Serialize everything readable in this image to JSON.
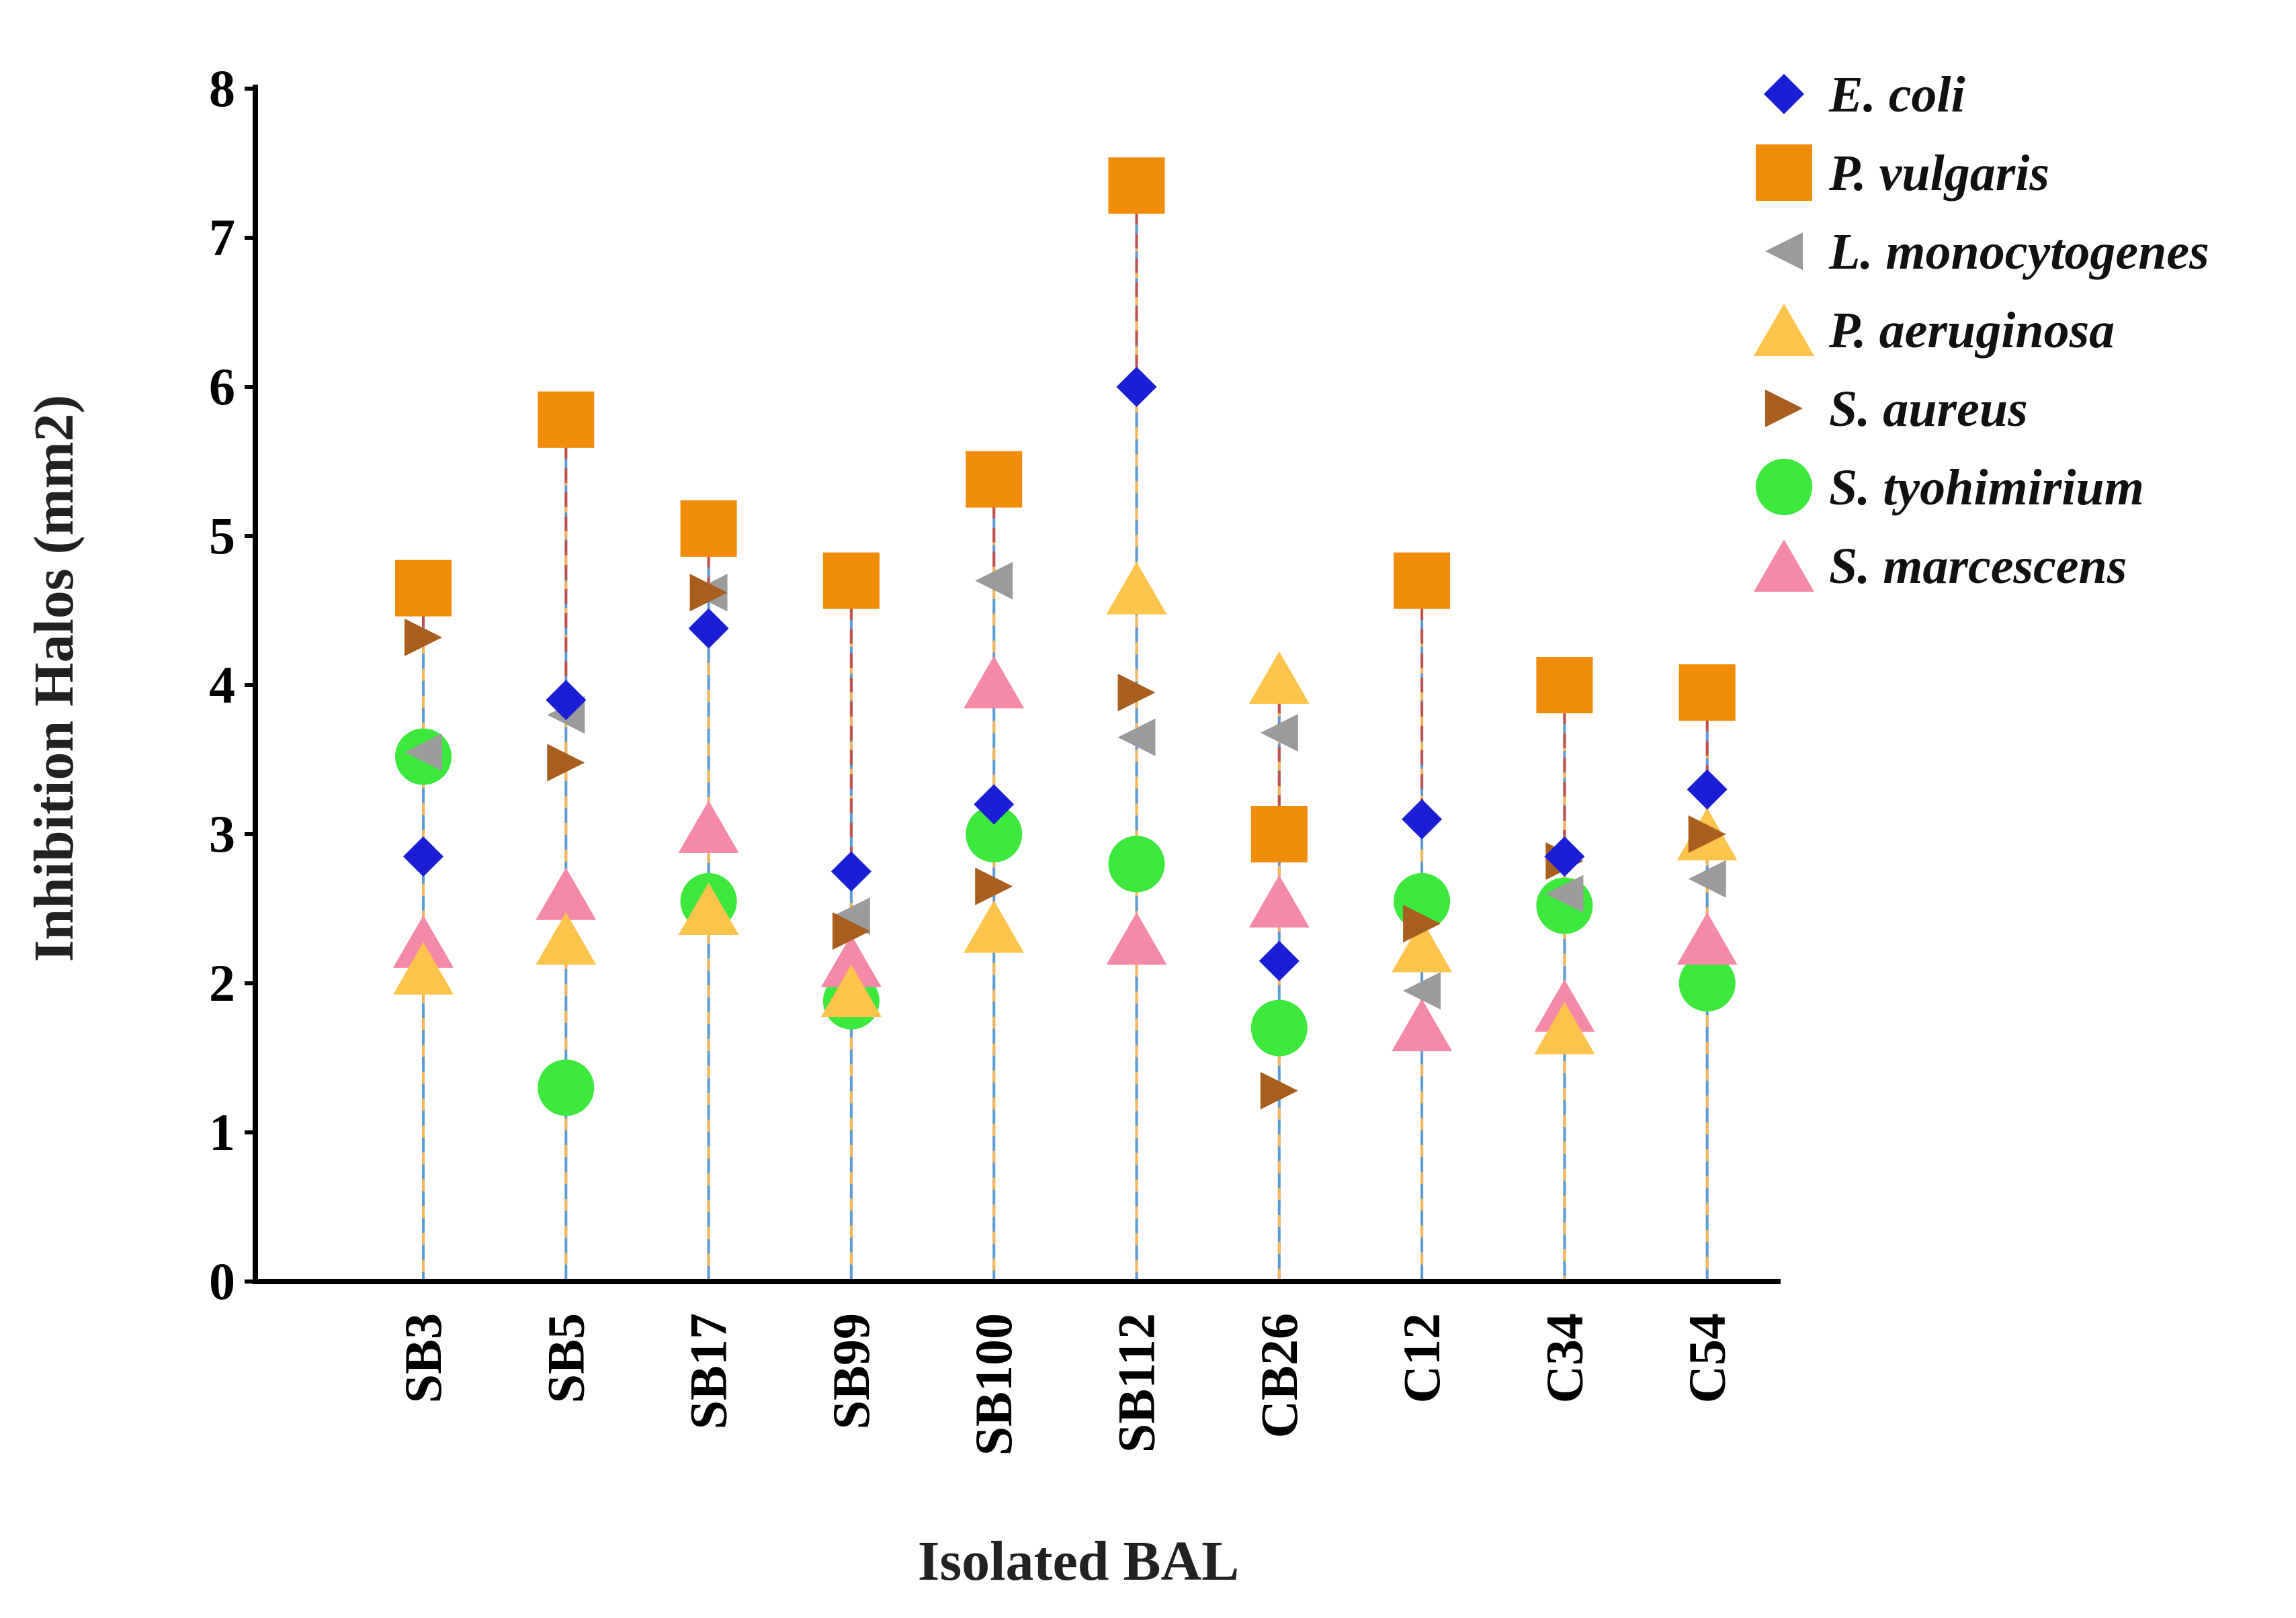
{
  "chart_data": {
    "type": "scatter",
    "title": "",
    "xlabel": "Isolated BAL",
    "ylabel": "Inhibition Halos (mm2)",
    "ylim": [
      0,
      8
    ],
    "yticks": [
      "0",
      "1",
      "2",
      "3",
      "4",
      "5",
      "6",
      "7",
      "8"
    ],
    "categories": [
      "SB3",
      "SB5",
      "SB17",
      "SB99",
      "SB100",
      "SB112",
      "CB26",
      "C12",
      "C34",
      "C54"
    ],
    "legend_position": "top-right",
    "series": [
      {
        "name": "E. coli",
        "marker": "diamond",
        "color": "#1a1fd6",
        "values": [
          2.85,
          3.9,
          4.38,
          2.75,
          3.2,
          6.0,
          2.15,
          3.1,
          2.85,
          3.3
        ]
      },
      {
        "name": "P. vulgaris",
        "marker": "square",
        "color": "#f08c0a",
        "values": [
          4.65,
          5.78,
          5.05,
          4.7,
          5.38,
          7.35,
          3.0,
          4.7,
          4.0,
          3.95
        ]
      },
      {
        "name": "L. monocytogenes",
        "marker": "triangle-left",
        "color": "#9b9b9b",
        "values": [
          3.55,
          3.8,
          4.62,
          2.45,
          4.7,
          3.65,
          3.68,
          1.95,
          2.6,
          2.7
        ]
      },
      {
        "name": "P. aeruginosa",
        "marker": "triangle-up",
        "color": "#fcc44a",
        "values": [
          2.1,
          2.3,
          2.5,
          1.95,
          2.38,
          4.65,
          4.05,
          2.25,
          1.7,
          3.0
        ]
      },
      {
        "name": "S. aureus",
        "marker": "triangle-right",
        "color": "#a85e1e",
        "values": [
          4.32,
          3.48,
          4.62,
          2.35,
          2.65,
          3.95,
          1.28,
          2.4,
          2.82,
          3.0
        ]
      },
      {
        "name": "S. tyohimirium",
        "marker": "circle",
        "color": "#3ce83c",
        "values": [
          3.52,
          1.3,
          2.55,
          1.88,
          3.0,
          2.8,
          1.7,
          2.55,
          2.52,
          2.0
        ]
      },
      {
        "name": "S. marcescens",
        "marker": "triangle-up",
        "color": "#f58aa8",
        "values": [
          2.28,
          2.6,
          3.05,
          2.15,
          4.02,
          2.3,
          2.55,
          1.72,
          1.85,
          2.3
        ]
      }
    ]
  }
}
